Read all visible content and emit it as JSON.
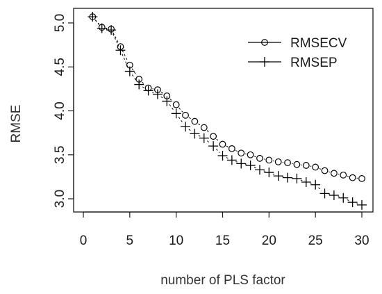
{
  "chart_data": {
    "type": "line",
    "title": "",
    "xlabel": "number of PLS factor",
    "ylabel": "RMSE",
    "xlim": [
      0,
      30.5
    ],
    "ylim": [
      2.9,
      5.1
    ],
    "xticks": [
      0,
      5,
      10,
      15,
      20,
      25,
      30
    ],
    "yticks": [
      3.0,
      3.5,
      4.0,
      4.5,
      5.0
    ],
    "xtick_labels": [
      "0",
      "5",
      "10",
      "15",
      "20",
      "25",
      "30"
    ],
    "ytick_labels": [
      "3.0",
      "3.5",
      "4.0",
      "4.5",
      "5.0"
    ],
    "legend_position": "top-right",
    "grid": false,
    "x": [
      1,
      2,
      3,
      4,
      5,
      6,
      7,
      8,
      9,
      10,
      11,
      12,
      13,
      14,
      15,
      16,
      17,
      18,
      19,
      20,
      21,
      22,
      23,
      24,
      25,
      26,
      27,
      28,
      29,
      30
    ],
    "series": [
      {
        "name": "RMSECV",
        "marker": "circle",
        "line": "dashed",
        "color": "#000000",
        "values": [
          5.07,
          4.95,
          4.93,
          4.73,
          4.52,
          4.36,
          4.26,
          4.24,
          4.17,
          4.07,
          3.95,
          3.88,
          3.81,
          3.71,
          3.62,
          3.57,
          3.52,
          3.5,
          3.46,
          3.44,
          3.42,
          3.41,
          3.39,
          3.38,
          3.36,
          3.32,
          3.29,
          3.27,
          3.24,
          3.23
        ]
      },
      {
        "name": "RMSEP",
        "marker": "plus",
        "line": "dashed",
        "color": "#000000",
        "values": [
          5.07,
          4.94,
          4.92,
          4.69,
          4.45,
          4.3,
          4.23,
          4.19,
          4.11,
          3.97,
          3.82,
          3.74,
          3.69,
          3.6,
          3.49,
          3.44,
          3.4,
          3.38,
          3.33,
          3.3,
          3.26,
          3.24,
          3.23,
          3.19,
          3.16,
          3.06,
          3.04,
          3.01,
          2.96,
          2.93
        ]
      }
    ]
  }
}
